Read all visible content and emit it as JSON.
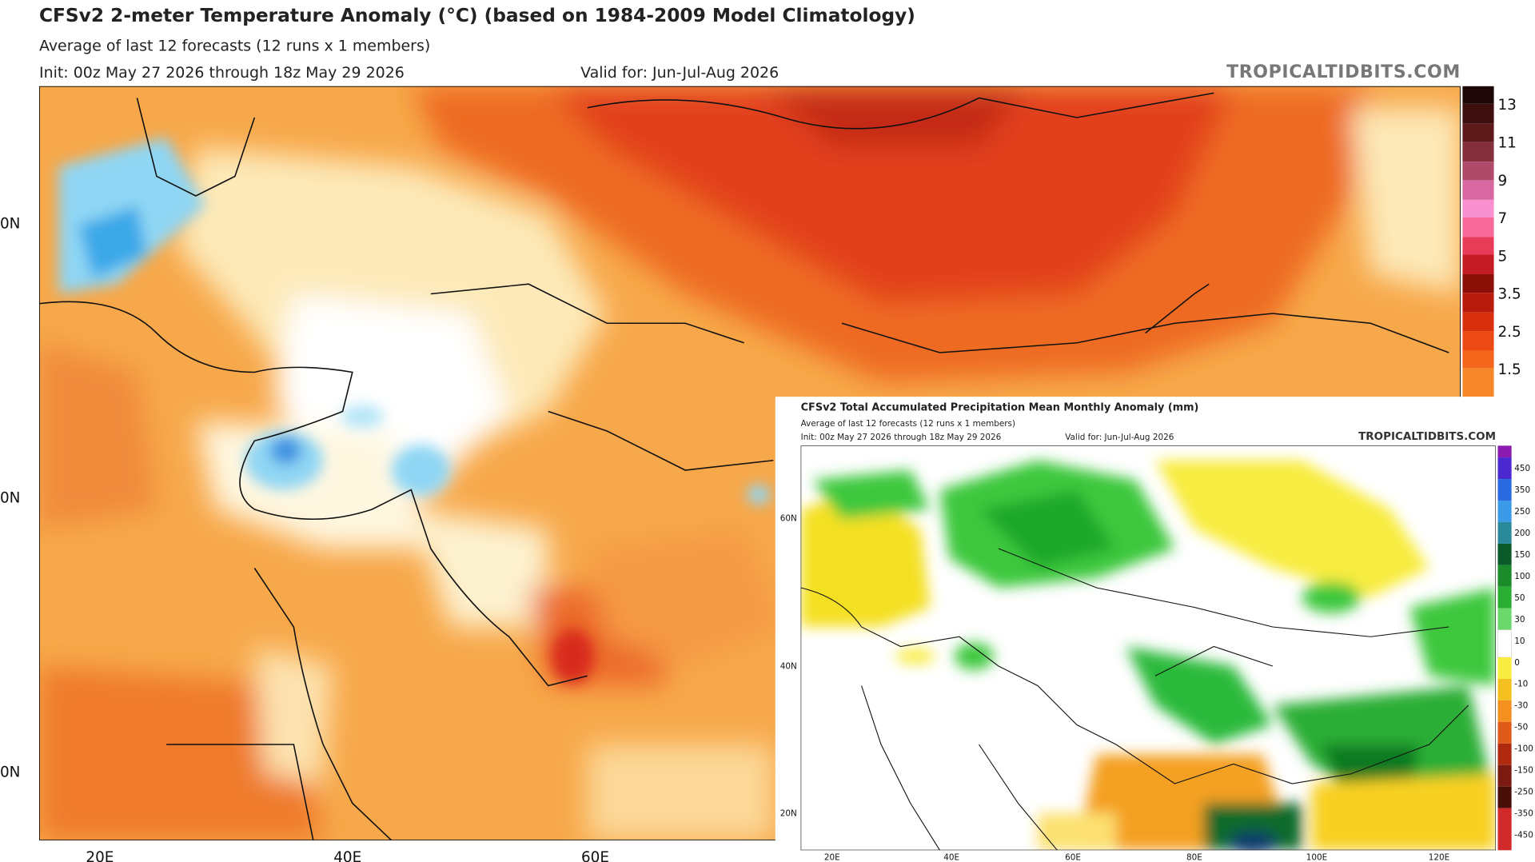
{
  "main": {
    "title": "CFSv2 2-meter Temperature Anomaly (°C) (based on 1984-2009 Model Climatology)",
    "subtitle": "Average of last 12 forecasts (12 runs x 1 members)",
    "init": "Init: 00z May 27 2026 through 18z May 29 2026",
    "valid": "Valid for: Jun-Jul-Aug 2026",
    "source": "TROPICALTIDBITS.COM",
    "colorbar_labels": [
      "13",
      "11",
      "9",
      "7",
      "5",
      "3.5",
      "2.5",
      "1.5"
    ],
    "lat_labels": [
      "0N",
      "0N",
      "0N"
    ],
    "lon_labels": [
      "20E",
      "40E",
      "60E"
    ]
  },
  "inset": {
    "title": "CFSv2 Total Accumulated Precipitation Mean Monthly Anomaly (mm)",
    "subtitle": "Average of last 12 forecasts (12 runs x 1 members)",
    "init": "Init: 00z May 27 2026 through 18z May 29 2026",
    "valid": "Valid for: Jun-Jul-Aug 2026",
    "source": "TROPICALTIDBITS.COM",
    "colorbar_labels": [
      "450",
      "350",
      "250",
      "200",
      "150",
      "100",
      "50",
      "30",
      "10",
      "0",
      "-10",
      "-30",
      "-50",
      "-100",
      "-150",
      "-250",
      "-350",
      "-450"
    ],
    "lat_labels": [
      "60N",
      "40N",
      "20N"
    ],
    "lon_labels": [
      "20E",
      "40E",
      "60E",
      "80E",
      "100E",
      "120E"
    ]
  }
}
